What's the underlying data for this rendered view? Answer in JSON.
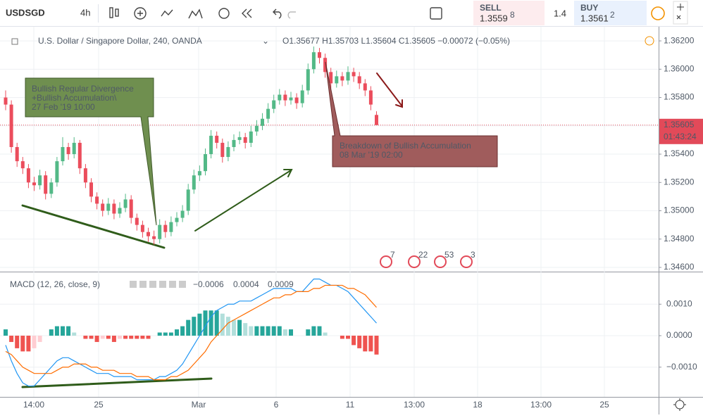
{
  "toolbar": {
    "symbol": "USDSGD",
    "interval": "4h",
    "sell_label": "SELL",
    "sell_price": "1.3559",
    "sell_pip": "8",
    "spread": "1.4",
    "buy_label": "BUY",
    "buy_price": "1.3561",
    "buy_pip": "2"
  },
  "legend": {
    "instrument": "U.S. Dollar / Singapore Dollar, 240, OANDA",
    "open": "O1.35677",
    "high": "H1.35703",
    "low": "L1.35604",
    "close": "C1.35605",
    "change": "−0.00072 (−0.05%)"
  },
  "price_axis": {
    "ylim": [
      1.3458,
      1.3628
    ],
    "ticks": [
      {
        "value": 1.362,
        "label": "1.36200"
      },
      {
        "value": 1.36,
        "label": "1.36000"
      },
      {
        "value": 1.358,
        "label": "1.35800"
      },
      {
        "value": 1.356,
        "label": "1.35600"
      },
      {
        "value": 1.354,
        "label": "1.35400"
      },
      {
        "value": 1.352,
        "label": "1.35200"
      },
      {
        "value": 1.35,
        "label": "1.35000"
      },
      {
        "value": 1.348,
        "label": "1.34800"
      },
      {
        "value": 1.346,
        "label": "1.34600"
      }
    ],
    "last_price": {
      "value": 1.35605,
      "label": "1.35605"
    },
    "countdown": "01:43:24"
  },
  "candles": [
    [
      1.358,
      1.3585,
      1.3571,
      1.3575
    ],
    [
      1.3575,
      1.3578,
      1.3541,
      1.3545
    ],
    [
      1.3545,
      1.3548,
      1.3531,
      1.3535
    ],
    [
      1.3535,
      1.3538,
      1.3526,
      1.353
    ],
    [
      1.353,
      1.3533,
      1.3516,
      1.352
    ],
    [
      1.352,
      1.3524,
      1.3514,
      1.3518
    ],
    [
      1.3518,
      1.3529,
      1.3515,
      1.3525
    ],
    [
      1.3525,
      1.3528,
      1.3508,
      1.3512
    ],
    [
      1.3512,
      1.3523,
      1.3509,
      1.352
    ],
    [
      1.352,
      1.3538,
      1.3517,
      1.3535
    ],
    [
      1.3535,
      1.3552,
      1.3532,
      1.3545
    ],
    [
      1.3545,
      1.3548,
      1.3536,
      1.354
    ],
    [
      1.354,
      1.3552,
      1.3537,
      1.3548
    ],
    [
      1.3548,
      1.355,
      1.3526,
      1.353
    ],
    [
      1.353,
      1.3533,
      1.3516,
      1.352
    ],
    [
      1.352,
      1.3523,
      1.3506,
      1.351
    ],
    [
      1.351,
      1.3513,
      1.3501,
      1.3505
    ],
    [
      1.3505,
      1.3508,
      1.3496,
      1.35
    ],
    [
      1.35,
      1.3509,
      1.3497,
      1.3505
    ],
    [
      1.3505,
      1.3508,
      1.3494,
      1.3498
    ],
    [
      1.3498,
      1.3506,
      1.3495,
      1.3502
    ],
    [
      1.3502,
      1.3512,
      1.3499,
      1.3508
    ],
    [
      1.3508,
      1.3511,
      1.3491,
      1.3495
    ],
    [
      1.3495,
      1.3498,
      1.3486,
      1.349
    ],
    [
      1.349,
      1.3493,
      1.3481,
      1.3485
    ],
    [
      1.3485,
      1.3488,
      1.3478,
      1.3482
    ],
    [
      1.3482,
      1.3486,
      1.3476,
      1.348
    ],
    [
      1.348,
      1.3494,
      1.3477,
      1.349
    ],
    [
      1.349,
      1.3493,
      1.3481,
      1.3485
    ],
    [
      1.3485,
      1.3496,
      1.3482,
      1.3492
    ],
    [
      1.3492,
      1.3499,
      1.3489,
      1.3495
    ],
    [
      1.3495,
      1.3504,
      1.3492,
      1.35
    ],
    [
      1.35,
      1.3519,
      1.3497,
      1.3515
    ],
    [
      1.3515,
      1.3529,
      1.3512,
      1.3525
    ],
    [
      1.3525,
      1.3532,
      1.3521,
      1.3528
    ],
    [
      1.3528,
      1.3544,
      1.3525,
      1.354
    ],
    [
      1.354,
      1.3557,
      1.3537,
      1.3553
    ],
    [
      1.3553,
      1.3556,
      1.3544,
      1.3548
    ],
    [
      1.3548,
      1.3551,
      1.3534,
      1.3538
    ],
    [
      1.3538,
      1.3549,
      1.3535,
      1.3545
    ],
    [
      1.3545,
      1.3554,
      1.3542,
      1.355
    ],
    [
      1.355,
      1.3556,
      1.3547,
      1.3552
    ],
    [
      1.3552,
      1.3555,
      1.3544,
      1.3548
    ],
    [
      1.3548,
      1.356,
      1.3545,
      1.3556
    ],
    [
      1.3556,
      1.3564,
      1.3553,
      1.356
    ],
    [
      1.356,
      1.3569,
      1.3557,
      1.3565
    ],
    [
      1.3565,
      1.3576,
      1.3562,
      1.3572
    ],
    [
      1.3572,
      1.3582,
      1.3569,
      1.3578
    ],
    [
      1.3578,
      1.3586,
      1.3575,
      1.3582
    ],
    [
      1.3582,
      1.3585,
      1.3574,
      1.3578
    ],
    [
      1.3578,
      1.3584,
      1.3575,
      1.358
    ],
    [
      1.358,
      1.3583,
      1.3572,
      1.3576
    ],
    [
      1.3576,
      1.3589,
      1.3573,
      1.3585
    ],
    [
      1.3585,
      1.3604,
      1.3582,
      1.36
    ],
    [
      1.36,
      1.3616,
      1.3597,
      1.3612
    ],
    [
      1.3612,
      1.3615,
      1.3604,
      1.3608
    ],
    [
      1.3608,
      1.3611,
      1.3594,
      1.3598
    ],
    [
      1.3598,
      1.3601,
      1.3586,
      1.359
    ],
    [
      1.359,
      1.3599,
      1.3587,
      1.3595
    ],
    [
      1.3595,
      1.3598,
      1.3588,
      1.3592
    ],
    [
      1.3592,
      1.3602,
      1.3589,
      1.3598
    ],
    [
      1.3598,
      1.3601,
      1.3591,
      1.3595
    ],
    [
      1.3595,
      1.3598,
      1.3586,
      1.359
    ],
    [
      1.359,
      1.3593,
      1.3581,
      1.3585
    ],
    [
      1.3585,
      1.3588,
      1.3571,
      1.3575
    ],
    [
      1.35677,
      1.35703,
      1.35604,
      1.35605
    ]
  ],
  "annotations": [
    {
      "lines": [
        "Bullish Regular Divergence",
        "+Bullish Accumulation\\",
        "27 Feb '19 10:00"
      ]
    },
    {
      "lines": [
        "Breakdown of Bullish Accumulation",
        "08 Mar '19 02:00"
      ]
    }
  ],
  "events": [
    "7",
    "22",
    "53",
    "3"
  ],
  "macd": {
    "title": "MACD (12, 26, close, 9)",
    "hist_label": "−0.0006",
    "macd_label": "0.0004",
    "signal_label": "0.0009",
    "ylim": [
      -0.0019,
      0.0019
    ],
    "ticks": [
      {
        "value": 0.001,
        "label": "0.0010"
      },
      {
        "value": 0,
        "label": "0.0000"
      },
      {
        "value": -0.001,
        "label": "−0.0010"
      }
    ],
    "histogram": [
      0.0002,
      -0.0002,
      -0.0004,
      -0.0005,
      -0.0005,
      -0.0004,
      -0.0002,
      0,
      0.0002,
      0.0003,
      0.0003,
      0.0003,
      0.0001,
      0,
      -0.0001,
      -0.0001,
      -0.0002,
      -0.0001,
      -0.0001,
      -0.0002,
      -0.0001,
      -0.0001,
      -0.0001,
      -0.0001,
      -0.0001,
      -0.0001,
      0,
      0.0001,
      0.0001,
      0.0001,
      0.0002,
      0.0003,
      0.0005,
      0.0006,
      0.0007,
      0.0008,
      0.0008,
      0.0008,
      0.0007,
      0.0006,
      0.0005,
      0.0005,
      0.0004,
      0.0003,
      0.0003,
      0.0003,
      0.0003,
      0.0003,
      0.0003,
      0.0002,
      0.0002,
      0,
      0,
      0.0002,
      0.0003,
      0.0003,
      0.0001,
      0,
      0,
      -0.0001,
      -0.0001,
      -0.0003,
      -0.0004,
      -0.0005,
      -0.0005,
      -0.0006
    ],
    "macd": [
      -0.0003,
      -0.0008,
      -0.0012,
      -0.0015,
      -0.0016,
      -0.0016,
      -0.0014,
      -0.0012,
      -0.001,
      -0.0008,
      -0.0007,
      -0.0007,
      -0.0008,
      -0.0009,
      -0.001,
      -0.0011,
      -0.0012,
      -0.0012,
      -0.0012,
      -0.0013,
      -0.0013,
      -0.0013,
      -0.0013,
      -0.0014,
      -0.0014,
      -0.0014,
      -0.0014,
      -0.0013,
      -0.0013,
      -0.0012,
      -0.0011,
      -0.0009,
      -0.0006,
      -0.0003,
      0,
      0.0003,
      0.0006,
      0.0008,
      0.0009,
      0.001,
      0.001,
      0.0011,
      0.0011,
      0.0011,
      0.0012,
      0.0013,
      0.0014,
      0.0015,
      0.0015,
      0.0015,
      0.0015,
      0.0014,
      0.0014,
      0.0016,
      0.0018,
      0.0018,
      0.0017,
      0.0016,
      0.0016,
      0.0015,
      0.0014,
      0.0012,
      0.001,
      0.0008,
      0.0006,
      0.0004
    ],
    "signal": [
      -0.0005,
      -0.0006,
      -0.0008,
      -0.001,
      -0.0011,
      -0.0012,
      -0.0012,
      -0.0012,
      -0.0012,
      -0.0011,
      -0.001,
      -0.001,
      -0.0009,
      -0.0009,
      -0.0009,
      -0.001,
      -0.001,
      -0.0011,
      -0.0011,
      -0.0011,
      -0.0012,
      -0.0012,
      -0.0012,
      -0.0013,
      -0.0013,
      -0.0013,
      -0.0014,
      -0.0014,
      -0.0014,
      -0.0013,
      -0.0013,
      -0.0012,
      -0.0011,
      -0.0009,
      -0.0007,
      -0.0005,
      -0.0002,
      0,
      0.0002,
      0.0004,
      0.0005,
      0.0006,
      0.0007,
      0.0008,
      0.0009,
      0.001,
      0.0011,
      0.0012,
      0.0012,
      0.0013,
      0.0013,
      0.0014,
      0.0014,
      0.0014,
      0.0015,
      0.0015,
      0.0016,
      0.0016,
      0.0016,
      0.0016,
      0.0015,
      0.0015,
      0.0014,
      0.0013,
      0.0011,
      0.0009
    ]
  },
  "time_axis": [
    "14:00",
    "25",
    "Mar",
    "6",
    "11",
    "13:00",
    "18",
    "13:00",
    "25"
  ]
}
